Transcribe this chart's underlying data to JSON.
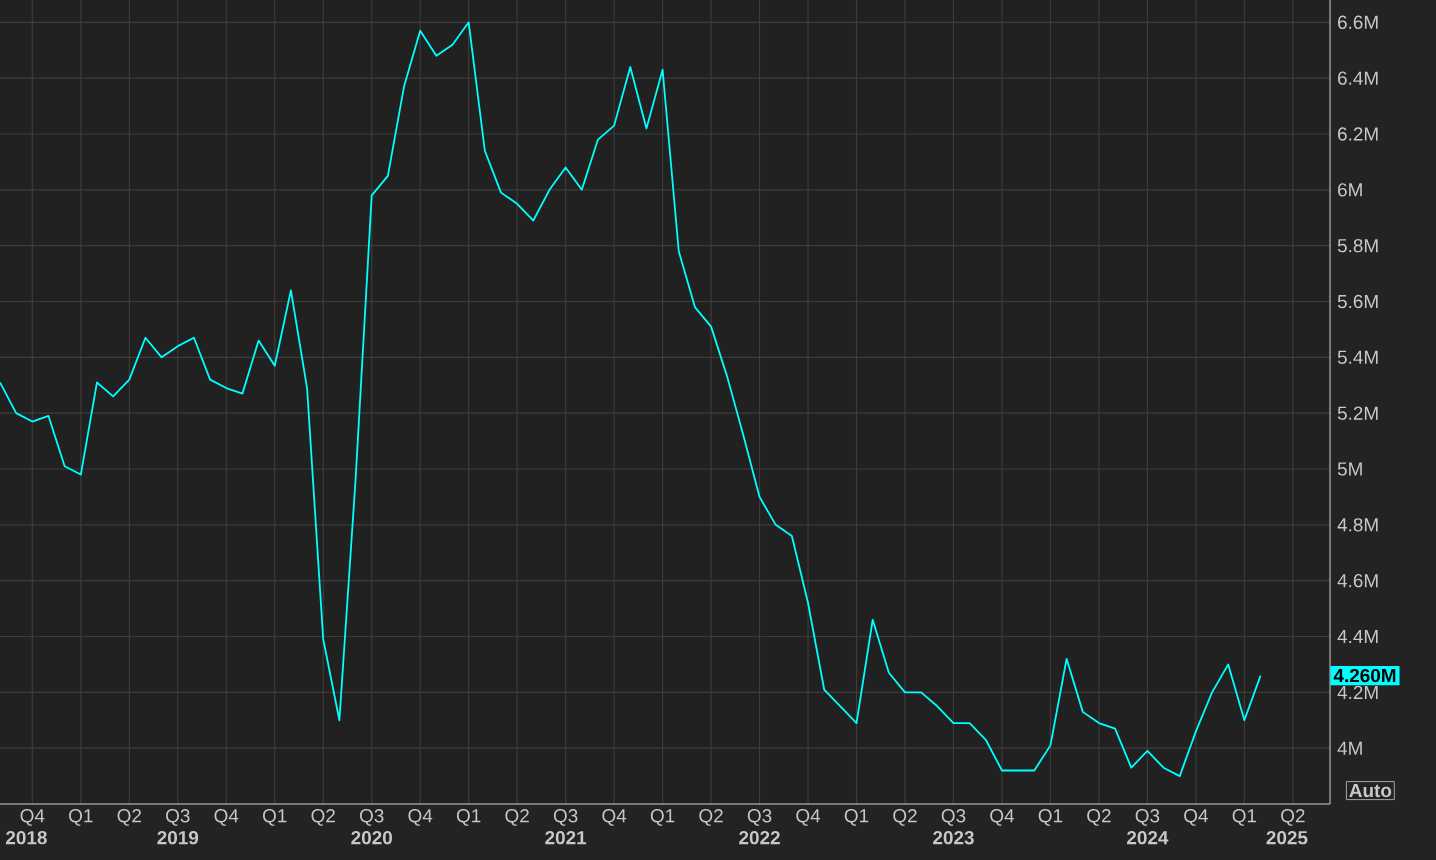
{
  "chart_data": {
    "type": "line",
    "x": [
      "2018-08",
      "2018-09",
      "2018-10",
      "2018-11",
      "2018-12",
      "2019-01",
      "2019-02",
      "2019-03",
      "2019-04",
      "2019-05",
      "2019-06",
      "2019-07",
      "2019-08",
      "2019-09",
      "2019-10",
      "2019-11",
      "2019-12",
      "2020-01",
      "2020-02",
      "2020-03",
      "2020-04",
      "2020-05",
      "2020-06",
      "2020-07",
      "2020-08",
      "2020-09",
      "2020-10",
      "2020-11",
      "2020-12",
      "2021-01",
      "2021-02",
      "2021-03",
      "2021-04",
      "2021-05",
      "2021-06",
      "2021-07",
      "2021-08",
      "2021-09",
      "2021-10",
      "2021-11",
      "2021-12",
      "2022-01",
      "2022-02",
      "2022-03",
      "2022-04",
      "2022-05",
      "2022-06",
      "2022-07",
      "2022-08",
      "2022-09",
      "2022-10",
      "2022-11",
      "2022-12",
      "2023-01",
      "2023-02",
      "2023-03",
      "2023-04",
      "2023-05",
      "2023-06",
      "2023-07",
      "2023-08",
      "2023-09",
      "2023-10",
      "2023-11",
      "2023-12",
      "2024-01",
      "2024-02",
      "2024-03",
      "2024-04",
      "2024-05",
      "2024-06",
      "2024-07",
      "2024-08",
      "2024-09",
      "2024-10",
      "2024-11",
      "2024-12",
      "2025-01",
      "2025-02"
    ],
    "series": [
      {
        "color": "#00ffff",
        "values": [
          5.31,
          5.2,
          5.17,
          5.19,
          5.01,
          4.98,
          5.31,
          5.26,
          5.32,
          5.47,
          5.4,
          5.44,
          5.47,
          5.32,
          5.29,
          5.27,
          5.46,
          5.37,
          5.64,
          5.29,
          4.39,
          4.1,
          4.96,
          5.98,
          6.05,
          6.37,
          6.57,
          6.48,
          6.52,
          6.6,
          6.14,
          5.99,
          5.95,
          5.89,
          6.0,
          6.08,
          6.0,
          6.18,
          6.23,
          6.44,
          6.22,
          6.43,
          5.78,
          5.58,
          5.51,
          5.33,
          5.12,
          4.9,
          4.8,
          4.76,
          4.52,
          4.21,
          4.15,
          4.09,
          4.46,
          4.27,
          4.2,
          4.2,
          4.15,
          4.09,
          4.09,
          4.03,
          3.92,
          3.92,
          3.92,
          4.01,
          4.32,
          4.13,
          4.09,
          4.07,
          3.93,
          3.99,
          3.93,
          3.9,
          4.06,
          4.2,
          4.3,
          4.1,
          4.26
        ]
      }
    ],
    "xlim": [
      "2018-08-01",
      "2025-06-10"
    ],
    "xticks": [
      {
        "value": "2018-10",
        "label": "Q4"
      },
      {
        "value": "2019-01",
        "label": "Q1"
      },
      {
        "value": "2019-04",
        "label": "Q2"
      },
      {
        "value": "2019-07",
        "label": "Q3"
      },
      {
        "value": "2019-10",
        "label": "Q4"
      },
      {
        "value": "2020-01",
        "label": "Q1"
      },
      {
        "value": "2020-04",
        "label": "Q2"
      },
      {
        "value": "2020-07",
        "label": "Q3"
      },
      {
        "value": "2020-10",
        "label": "Q4"
      },
      {
        "value": "2021-01",
        "label": "Q1"
      },
      {
        "value": "2021-04",
        "label": "Q2"
      },
      {
        "value": "2021-07",
        "label": "Q3"
      },
      {
        "value": "2021-10",
        "label": "Q4"
      },
      {
        "value": "2022-01",
        "label": "Q1"
      },
      {
        "value": "2022-04",
        "label": "Q2"
      },
      {
        "value": "2022-07",
        "label": "Q3"
      },
      {
        "value": "2022-10",
        "label": "Q4"
      },
      {
        "value": "2023-01",
        "label": "Q1"
      },
      {
        "value": "2023-04",
        "label": "Q2"
      },
      {
        "value": "2023-07",
        "label": "Q3"
      },
      {
        "value": "2023-10",
        "label": "Q4"
      },
      {
        "value": "2024-01",
        "label": "Q1"
      },
      {
        "value": "2024-04",
        "label": "Q2"
      },
      {
        "value": "2024-07",
        "label": "Q3"
      },
      {
        "value": "2024-10",
        "label": "Q4"
      },
      {
        "value": "2025-01",
        "label": "Q1"
      },
      {
        "value": "2025-04",
        "label": "Q2"
      }
    ],
    "x2lim": [
      "2018-08-01",
      "2025-06-10"
    ],
    "x2ticks": [
      {
        "value": "2018-09-20",
        "label": "2018"
      },
      {
        "value": "2019-07-01",
        "label": "2019"
      },
      {
        "value": "2020-07-01",
        "label": "2020"
      },
      {
        "value": "2021-07-01",
        "label": "2021"
      },
      {
        "value": "2022-07-01",
        "label": "2022"
      },
      {
        "value": "2023-07-01",
        "label": "2023"
      },
      {
        "value": "2024-07-01",
        "label": "2024"
      },
      {
        "value": "2025-03-20",
        "label": "2025"
      }
    ],
    "ylim": [
      3.8,
      6.68
    ],
    "yticks": [
      {
        "value": 4,
        "label": "4M"
      },
      {
        "value": 4.2,
        "label": "4.2M"
      },
      {
        "value": 4.4,
        "label": "4.4M"
      },
      {
        "value": 4.6,
        "label": "4.6M"
      },
      {
        "value": 4.8,
        "label": "4.8M"
      },
      {
        "value": 5,
        "label": "5M"
      },
      {
        "value": 5.2,
        "label": "5.2M"
      },
      {
        "value": 5.4,
        "label": "5.4M"
      },
      {
        "value": 5.6,
        "label": "5.6M"
      },
      {
        "value": 5.8,
        "label": "5.8M"
      },
      {
        "value": 6,
        "label": "6M"
      },
      {
        "value": 6.2,
        "label": "6.2M"
      },
      {
        "value": 6.4,
        "label": "6.4M"
      },
      {
        "value": 6.6,
        "label": "6.6M"
      }
    ],
    "grid": true,
    "annotations": [
      "4.260M",
      "Auto"
    ]
  }
}
